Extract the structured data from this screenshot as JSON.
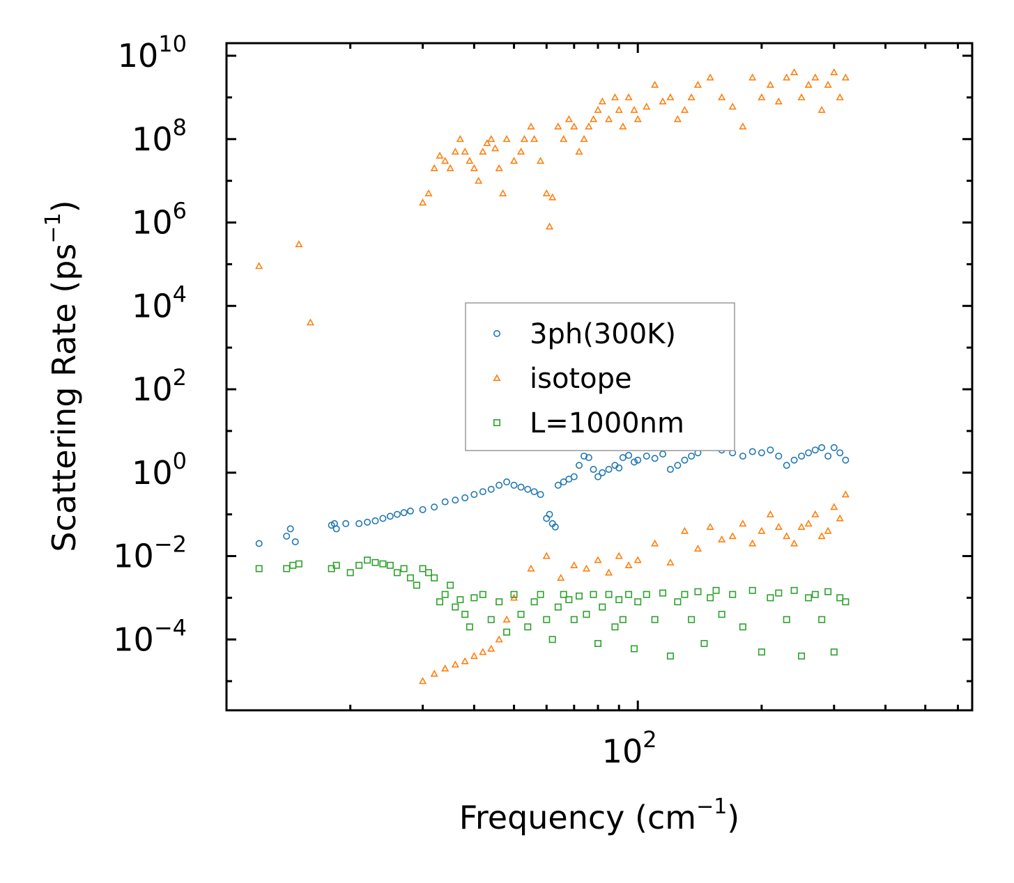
{
  "chart_data": {
    "type": "scatter",
    "xscale": "log",
    "yscale": "log",
    "xlim": [
      10,
      650
    ],
    "ylim": [
      2e-06,
      20000000000.0
    ],
    "xlabel": {
      "base": "Frequency (cm",
      "sup": "−1",
      "tail": ")"
    },
    "ylabel": {
      "base": "Scattering Rate (ps",
      "sup": "−1",
      "tail": ")"
    },
    "x_ticks": [
      {
        "value": 100,
        "base": "10",
        "exp": "2"
      }
    ],
    "y_ticks": [
      {
        "value": 10000000000.0,
        "base": "10",
        "exp": "10"
      },
      {
        "value": 100000000.0,
        "base": "10",
        "exp": "8"
      },
      {
        "value": 1000000.0,
        "base": "10",
        "exp": "6"
      },
      {
        "value": 10000.0,
        "base": "10",
        "exp": "4"
      },
      {
        "value": 100.0,
        "base": "10",
        "exp": "2"
      },
      {
        "value": 1,
        "base": "10",
        "exp": "0"
      },
      {
        "value": 0.01,
        "base": "10",
        "exp": "−2"
      },
      {
        "value": 0.0001,
        "base": "10",
        "exp": "−4"
      }
    ],
    "legend": {
      "position": "center"
    },
    "series": [
      {
        "name": "3ph(300K)",
        "marker": "circle",
        "color": "#1f77b4",
        "points": [
          [
            12,
            0.02
          ],
          [
            14,
            0.03
          ],
          [
            14.3,
            0.045
          ],
          [
            14.7,
            0.022
          ],
          [
            18,
            0.055
          ],
          [
            18.3,
            0.06
          ],
          [
            18.5,
            0.045
          ],
          [
            19.5,
            0.06
          ],
          [
            21,
            0.06
          ],
          [
            22,
            0.065
          ],
          [
            23,
            0.07
          ],
          [
            24,
            0.08
          ],
          [
            25,
            0.09
          ],
          [
            26,
            0.1
          ],
          [
            27,
            0.11
          ],
          [
            28,
            0.12
          ],
          [
            30,
            0.13
          ],
          [
            32,
            0.15
          ],
          [
            34,
            0.2
          ],
          [
            36,
            0.22
          ],
          [
            38,
            0.25
          ],
          [
            40,
            0.3
          ],
          [
            42,
            0.35
          ],
          [
            44,
            0.4
          ],
          [
            46,
            0.5
          ],
          [
            48,
            0.6
          ],
          [
            50,
            0.5
          ],
          [
            52,
            0.45
          ],
          [
            54,
            0.4
          ],
          [
            56,
            0.35
          ],
          [
            58,
            0.3
          ],
          [
            60,
            0.08
          ],
          [
            61,
            0.1
          ],
          [
            62,
            0.06
          ],
          [
            63,
            0.05
          ],
          [
            64,
            0.5
          ],
          [
            66,
            0.6
          ],
          [
            68,
            0.7
          ],
          [
            70,
            0.8
          ],
          [
            72,
            1.5
          ],
          [
            74,
            2.5
          ],
          [
            76,
            2.3
          ],
          [
            78,
            1.2
          ],
          [
            80,
            0.8
          ],
          [
            82,
            1.0
          ],
          [
            85,
            1.2
          ],
          [
            88,
            1.5
          ],
          [
            90,
            1.3
          ],
          [
            92,
            2.3
          ],
          [
            95,
            2.6
          ],
          [
            98,
            1.8
          ],
          [
            100,
            2.0
          ],
          [
            105,
            2.5
          ],
          [
            110,
            2.2
          ],
          [
            115,
            2.8
          ],
          [
            120,
            1.2
          ],
          [
            125,
            1.5
          ],
          [
            130,
            2.0
          ],
          [
            135,
            2.5
          ],
          [
            140,
            3.0
          ],
          [
            145,
            4.5
          ],
          [
            150,
            5.0
          ],
          [
            155,
            4.0
          ],
          [
            160,
            3.5
          ],
          [
            170,
            3.0
          ],
          [
            180,
            2.5
          ],
          [
            190,
            3.2
          ],
          [
            200,
            3.0
          ],
          [
            210,
            3.5
          ],
          [
            220,
            2.5
          ],
          [
            230,
            1.5
          ],
          [
            240,
            2.0
          ],
          [
            250,
            2.5
          ],
          [
            260,
            3.0
          ],
          [
            270,
            3.5
          ],
          [
            280,
            4.0
          ],
          [
            290,
            2.5
          ],
          [
            300,
            4.0
          ],
          [
            310,
            3.0
          ],
          [
            320,
            2.0
          ]
        ]
      },
      {
        "name": "isotope",
        "marker": "triangle",
        "color": "#ff7f0e",
        "points": [
          [
            12,
            90000
          ],
          [
            15,
            300000
          ],
          [
            16,
            4000
          ],
          [
            30,
            3000000.0
          ],
          [
            31,
            5000000.0
          ],
          [
            32,
            20000000.0
          ],
          [
            33,
            40000000.0
          ],
          [
            34,
            30000000.0
          ],
          [
            35,
            20000000.0
          ],
          [
            36,
            50000000.0
          ],
          [
            37,
            100000000.0
          ],
          [
            38,
            50000000.0
          ],
          [
            39,
            30000000.0
          ],
          [
            40,
            20000000.0
          ],
          [
            41,
            10000000.0
          ],
          [
            42,
            50000000.0
          ],
          [
            43,
            80000000.0
          ],
          [
            44,
            100000000.0
          ],
          [
            45,
            60000000.0
          ],
          [
            46,
            20000000.0
          ],
          [
            47,
            5000000.0
          ],
          [
            48,
            100000000.0
          ],
          [
            50,
            30000000.0
          ],
          [
            52,
            50000000.0
          ],
          [
            53,
            100000000.0
          ],
          [
            55,
            200000000.0
          ],
          [
            56,
            100000000.0
          ],
          [
            58,
            30000000.0
          ],
          [
            60,
            5000000.0
          ],
          [
            61,
            800000.0
          ],
          [
            62,
            4000000.0
          ],
          [
            64,
            200000000.0
          ],
          [
            66,
            100000000.0
          ],
          [
            68,
            300000000.0
          ],
          [
            70,
            200000000.0
          ],
          [
            72,
            50000000.0
          ],
          [
            74,
            100000000.0
          ],
          [
            76,
            200000000.0
          ],
          [
            78,
            300000000.0
          ],
          [
            80,
            500000000.0
          ],
          [
            82,
            800000000.0
          ],
          [
            85,
            300000000.0
          ],
          [
            88,
            1000000000.0
          ],
          [
            90,
            500000000.0
          ],
          [
            92,
            200000000.0
          ],
          [
            95,
            1000000000.0
          ],
          [
            98,
            500000000.0
          ],
          [
            100,
            300000000.0
          ],
          [
            105,
            600000000.0
          ],
          [
            110,
            2000000000.0
          ],
          [
            115,
            800000000.0
          ],
          [
            120,
            1000000000.0
          ],
          [
            125,
            300000000.0
          ],
          [
            130,
            500000000.0
          ],
          [
            135,
            1000000000.0
          ],
          [
            140,
            2000000000.0
          ],
          [
            150,
            3000000000.0
          ],
          [
            160,
            1000000000.0
          ],
          [
            170,
            600000000.0
          ],
          [
            180,
            200000000.0
          ],
          [
            190,
            3000000000.0
          ],
          [
            200,
            1000000000.0
          ],
          [
            210,
            2000000000.0
          ],
          [
            220,
            800000000.0
          ],
          [
            230,
            3000000000.0
          ],
          [
            240,
            4000000000.0
          ],
          [
            250,
            1000000000.0
          ],
          [
            260,
            2000000000.0
          ],
          [
            270,
            3000000000.0
          ],
          [
            280,
            500000000.0
          ],
          [
            290,
            2000000000.0
          ],
          [
            300,
            4000000000.0
          ],
          [
            310,
            1000000000.0
          ],
          [
            320,
            3000000000.0
          ],
          [
            30,
            1e-05
          ],
          [
            32,
            1.5e-05
          ],
          [
            34,
            2e-05
          ],
          [
            36,
            2.5e-05
          ],
          [
            38,
            3e-05
          ],
          [
            40,
            4e-05
          ],
          [
            42,
            5e-05
          ],
          [
            44,
            6e-05
          ],
          [
            46,
            0.0001
          ],
          [
            48,
            0.0003
          ],
          [
            50,
            0.001
          ],
          [
            55,
            0.005
          ],
          [
            60,
            0.01
          ],
          [
            65,
            0.003
          ],
          [
            70,
            0.006
          ],
          [
            75,
            0.005
          ],
          [
            80,
            0.008
          ],
          [
            85,
            0.004
          ],
          [
            90,
            0.01
          ],
          [
            95,
            0.006
          ],
          [
            100,
            0.008
          ],
          [
            110,
            0.02
          ],
          [
            120,
            0.007
          ],
          [
            130,
            0.04
          ],
          [
            140,
            0.015
          ],
          [
            150,
            0.05
          ],
          [
            160,
            0.025
          ],
          [
            170,
            0.03
          ],
          [
            180,
            0.06
          ],
          [
            190,
            0.02
          ],
          [
            200,
            0.04
          ],
          [
            210,
            0.1
          ],
          [
            220,
            0.05
          ],
          [
            230,
            0.03
          ],
          [
            240,
            0.02
          ],
          [
            250,
            0.05
          ],
          [
            260,
            0.06
          ],
          [
            270,
            0.1
          ],
          [
            280,
            0.03
          ],
          [
            290,
            0.04
          ],
          [
            300,
            0.15
          ],
          [
            310,
            0.08
          ],
          [
            320,
            0.3
          ]
        ]
      },
      {
        "name": "L=1000nm",
        "marker": "square",
        "color": "#2ca02c",
        "points": [
          [
            12,
            0.005
          ],
          [
            14,
            0.005
          ],
          [
            14.5,
            0.006
          ],
          [
            15,
            0.0065
          ],
          [
            18,
            0.005
          ],
          [
            18.5,
            0.006
          ],
          [
            20,
            0.004
          ],
          [
            21,
            0.006
          ],
          [
            22,
            0.008
          ],
          [
            23,
            0.007
          ],
          [
            24,
            0.0065
          ],
          [
            25,
            0.006
          ],
          [
            26,
            0.004
          ],
          [
            27,
            0.005
          ],
          [
            28,
            0.003
          ],
          [
            29,
            0.002
          ],
          [
            30,
            0.005
          ],
          [
            31,
            0.004
          ],
          [
            32,
            0.003
          ],
          [
            33,
            0.0008
          ],
          [
            34,
            0.0012
          ],
          [
            35,
            0.002
          ],
          [
            36,
            0.0006
          ],
          [
            37,
            0.0009
          ],
          [
            38,
            0.0004
          ],
          [
            39,
            0.0002
          ],
          [
            40,
            0.001
          ],
          [
            42,
            0.0012
          ],
          [
            44,
            0.0003
          ],
          [
            46,
            0.0008
          ],
          [
            48,
            0.00015
          ],
          [
            50,
            0.0012
          ],
          [
            52,
            0.0004
          ],
          [
            54,
            0.0002
          ],
          [
            56,
            0.0008
          ],
          [
            58,
            0.0012
          ],
          [
            60,
            0.0003
          ],
          [
            62,
            0.0001
          ],
          [
            64,
            0.0006
          ],
          [
            66,
            0.0012
          ],
          [
            68,
            0.0009
          ],
          [
            70,
            0.0003
          ],
          [
            72,
            0.0011
          ],
          [
            75,
            0.0004
          ],
          [
            78,
            0.0012
          ],
          [
            80,
            8e-05
          ],
          [
            82,
            0.0006
          ],
          [
            85,
            0.0012
          ],
          [
            88,
            0.0002
          ],
          [
            90,
            0.0009
          ],
          [
            92,
            0.0003
          ],
          [
            95,
            0.0012
          ],
          [
            98,
            6e-05
          ],
          [
            100,
            0.0008
          ],
          [
            105,
            0.0012
          ],
          [
            110,
            0.0003
          ],
          [
            115,
            0.0013
          ],
          [
            120,
            4e-05
          ],
          [
            125,
            0.0008
          ],
          [
            130,
            0.0012
          ],
          [
            135,
            0.0003
          ],
          [
            140,
            0.0014
          ],
          [
            145,
            8e-05
          ],
          [
            150,
            0.001
          ],
          [
            155,
            0.0015
          ],
          [
            160,
            0.0004
          ],
          [
            170,
            0.0012
          ],
          [
            180,
            0.0002
          ],
          [
            190,
            0.0015
          ],
          [
            200,
            5e-05
          ],
          [
            210,
            0.001
          ],
          [
            220,
            0.0013
          ],
          [
            230,
            0.0003
          ],
          [
            240,
            0.0015
          ],
          [
            250,
            4e-05
          ],
          [
            260,
            0.001
          ],
          [
            270,
            0.0012
          ],
          [
            280,
            0.0003
          ],
          [
            290,
            0.0014
          ],
          [
            300,
            5e-05
          ],
          [
            310,
            0.001
          ],
          [
            320,
            0.0008
          ]
        ]
      }
    ]
  }
}
